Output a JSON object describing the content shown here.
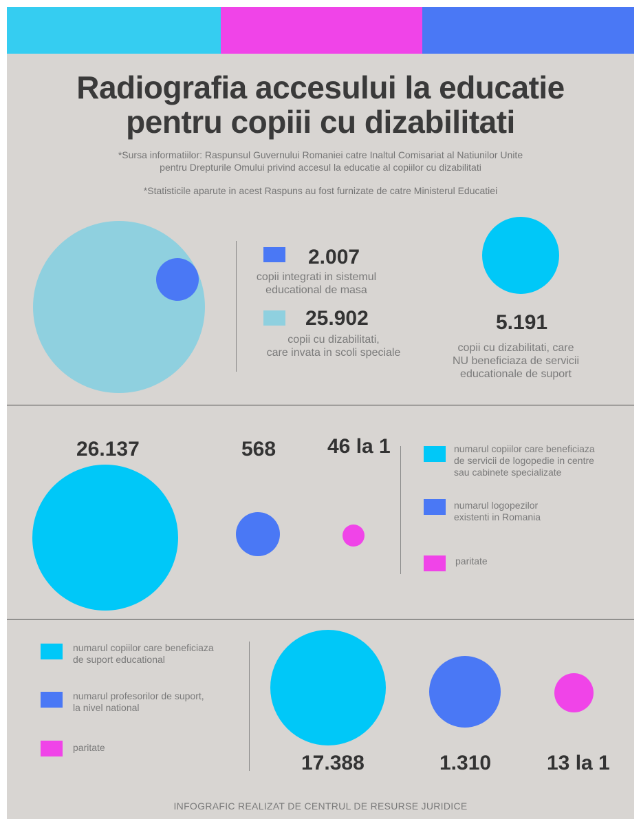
{
  "colors": {
    "cyan": "#35cdf1",
    "magenta": "#f044e8",
    "blue": "#4a78f5",
    "light_blue": "#8fd0df",
    "background": "#d8d5d2"
  },
  "header": {
    "title_line1": "Radiografia accesului la educatie",
    "title_line2": "pentru copiii cu dizabilitati",
    "source_line1": "*Sursa informatiilor: Raspunsul Guvernului Romaniei catre Inaltul Comisariat al Natiunilor Unite",
    "source_line2": "pentru Drepturile Omului privind accesul la educatie al copiilor cu dizabilitati",
    "stats_note": "*Statisticile aparute in acest Raspuns au fost furnizate de catre Ministerul Educatiei"
  },
  "section1": {
    "integrated_value": "2.007",
    "integrated_desc_line1": "copii integrati in sistemul",
    "integrated_desc_line2": "educational de masa",
    "special_value": "25.902",
    "special_desc_line1": "copii cu dizabilitati,",
    "special_desc_line2": "care invata in scoli speciale",
    "no_support_value": "5.191",
    "no_support_desc_line1": "copii cu dizabilitati, care",
    "no_support_desc_line2": "NU beneficiaza de servicii",
    "no_support_desc_line3": "educationale de suport"
  },
  "section2": {
    "children_value": "26.137",
    "speech_therapists_value": "568",
    "ratio_value": "46 la 1",
    "legend": {
      "children_line1": "numarul copiilor care beneficiaza",
      "children_line2": "de servicii de logopedie in centre",
      "children_line3": "sau cabinete specializate",
      "therapists_line1": "numarul logopezilor",
      "therapists_line2": "existenti in Romania",
      "ratio": "paritate"
    }
  },
  "section3": {
    "children_value": "17.388",
    "teachers_value": "1.310",
    "ratio_value": "13 la 1",
    "legend": {
      "children_line1": "numarul copiilor care beneficiaza",
      "children_line2": "de suport educational",
      "teachers_line1": "numarul profesorilor de suport,",
      "teachers_line2": "la nivel national",
      "ratio": "paritate"
    }
  },
  "footer": {
    "credit": "INFOGRAFIC REALIZAT DE CENTRUL DE RESURSE JURIDICE"
  }
}
